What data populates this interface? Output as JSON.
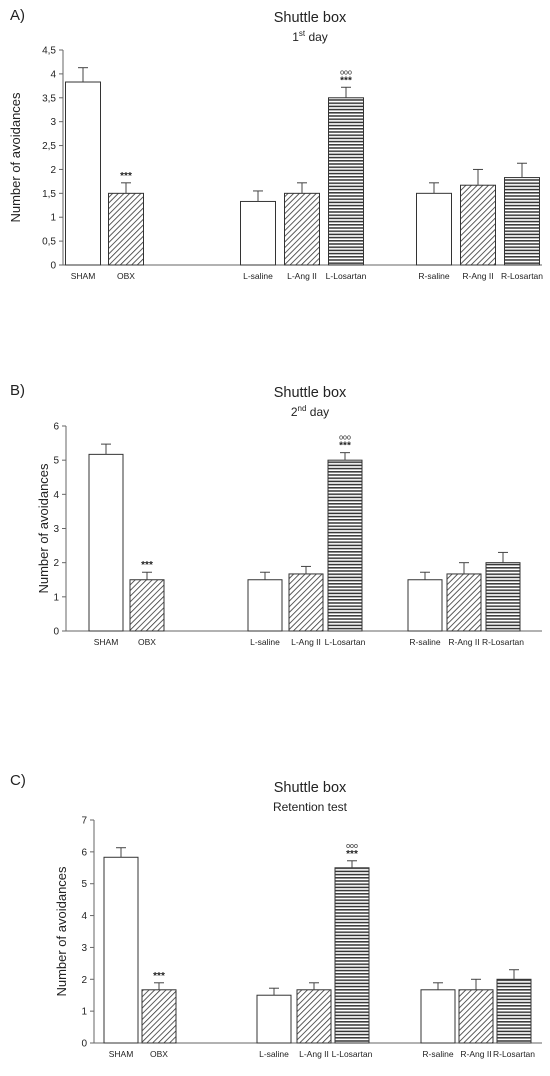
{
  "chart_data": [
    {
      "type": "bar",
      "panel_label": "A)",
      "title": "Shuttle box",
      "subtitle": {
        "main": "1",
        "sup": "st",
        "rest": " day"
      },
      "ylabel": "Number of avoidances",
      "ylim": [
        0,
        4.5
      ],
      "yticks": [
        "0",
        "0,5",
        "1",
        "1,5",
        "2",
        "2,5",
        "3",
        "3,5",
        "4",
        "4,5"
      ],
      "yticks_values": [
        0,
        0.5,
        1,
        1.5,
        2,
        2.5,
        3,
        3.5,
        4,
        4.5
      ],
      "categories": [
        "SHAM",
        "OBX",
        "L-saline",
        "L-Ang II",
        "L-Losartan",
        "R-saline",
        "R-Ang II",
        "R-Losartan"
      ],
      "values": [
        3.83,
        1.5,
        1.33,
        1.5,
        3.5,
        1.5,
        1.67,
        1.83
      ],
      "errors": [
        0.3,
        0.22,
        0.22,
        0.22,
        0.22,
        0.22,
        0.33,
        0.3
      ],
      "patterns": [
        "white",
        "diagonal",
        "white",
        "diagonal",
        "horizontal",
        "white",
        "diagonal",
        "horizontal"
      ],
      "annotations": [
        {
          "category": "OBX",
          "text": "***"
        },
        {
          "category": "L-Losartan",
          "text": "***",
          "text2": "ooo"
        }
      ]
    },
    {
      "type": "bar",
      "panel_label": "B)",
      "title": "Shuttle box",
      "subtitle": {
        "main": "2",
        "sup": "nd",
        "rest": " day"
      },
      "ylabel": "Number of avoidances",
      "ylim": [
        0,
        6
      ],
      "yticks": [
        "0",
        "1",
        "2",
        "3",
        "4",
        "5",
        "6"
      ],
      "yticks_values": [
        0,
        1,
        2,
        3,
        4,
        5,
        6
      ],
      "categories": [
        "SHAM",
        "OBX",
        "L-saline",
        "L-Ang II",
        "L-Losartan",
        "R-saline",
        "R-Ang II",
        "R-Losartan"
      ],
      "values": [
        5.17,
        1.5,
        1.5,
        1.67,
        5.0,
        1.5,
        1.67,
        2.0
      ],
      "errors": [
        0.3,
        0.22,
        0.22,
        0.22,
        0.22,
        0.22,
        0.33,
        0.3
      ],
      "patterns": [
        "white",
        "diagonal",
        "white",
        "diagonal",
        "horizontal",
        "white",
        "diagonal",
        "horizontal"
      ],
      "annotations": [
        {
          "category": "OBX",
          "text": "***"
        },
        {
          "category": "L-Losartan",
          "text": "***",
          "text2": "ooo"
        }
      ]
    },
    {
      "type": "bar",
      "panel_label": "C)",
      "title": "Shuttle box",
      "subtitle": {
        "main": "Retention test",
        "sup": "",
        "rest": ""
      },
      "ylabel": "Number of avoidances",
      "ylim": [
        0,
        7
      ],
      "yticks": [
        "0",
        "1",
        "2",
        "3",
        "4",
        "5",
        "6",
        "7"
      ],
      "yticks_values": [
        0,
        1,
        2,
        3,
        4,
        5,
        6,
        7
      ],
      "categories": [
        "SHAM",
        "OBX",
        "L-saline",
        "L-Ang II",
        "L-Losartan",
        "R-saline",
        "R-Ang II",
        "R-Losartan"
      ],
      "values": [
        5.83,
        1.67,
        1.5,
        1.67,
        5.5,
        1.67,
        1.67,
        2.0
      ],
      "errors": [
        0.3,
        0.22,
        0.22,
        0.22,
        0.22,
        0.22,
        0.33,
        0.3
      ],
      "patterns": [
        "white",
        "diagonal",
        "white",
        "diagonal",
        "horizontal",
        "white",
        "diagonal",
        "horizontal"
      ],
      "annotations": [
        {
          "category": "OBX",
          "text": "***"
        },
        {
          "category": "L-Losartan",
          "text": "***",
          "text2": "ooo"
        }
      ]
    }
  ]
}
